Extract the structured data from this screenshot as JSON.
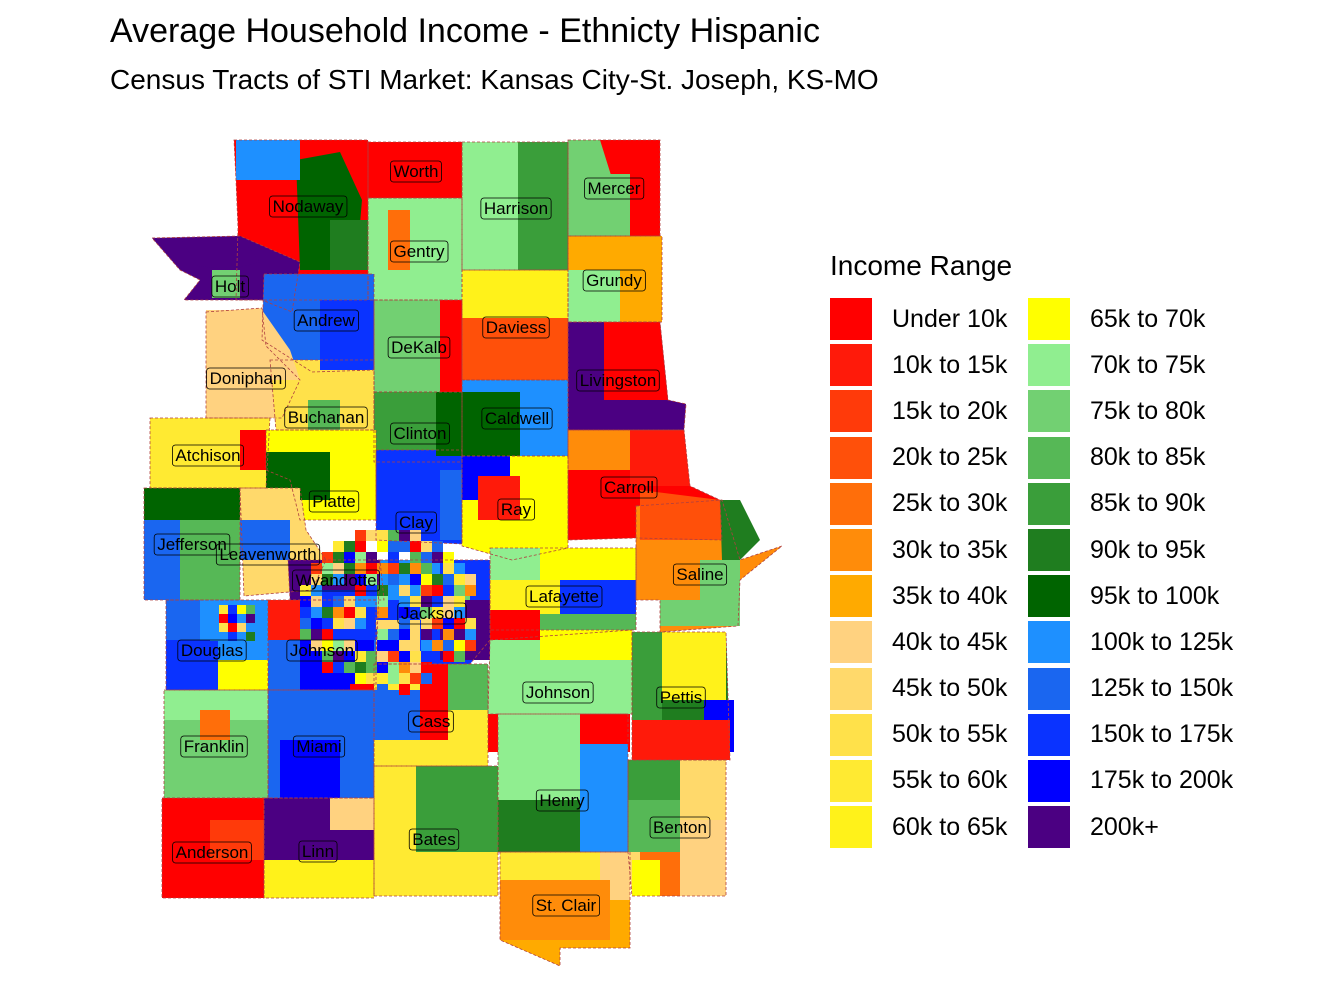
{
  "title": "Average Household Income - Ethnicty Hispanic",
  "subtitle": "Census Tracts of STI Market: Kansas City-St. Joseph, KS-MO",
  "legend": {
    "title": "Income Range",
    "items": [
      {
        "label": "Under 10k",
        "color": "#ff0000"
      },
      {
        "label": "10k to 15k",
        "color": "#ff1a0a"
      },
      {
        "label": "15k to 20k",
        "color": "#ff3a0a"
      },
      {
        "label": "20k to 25k",
        "color": "#ff500a"
      },
      {
        "label": "25k to 30k",
        "color": "#ff6e0a"
      },
      {
        "label": "30k to 35k",
        "color": "#ff8c0a"
      },
      {
        "label": "35k to 40k",
        "color": "#ffaa00"
      },
      {
        "label": "40k to 45k",
        "color": "#ffd280"
      },
      {
        "label": "45k to 50k",
        "color": "#ffd96b"
      },
      {
        "label": "50k to 55k",
        "color": "#ffe14a"
      },
      {
        "label": "55k to 60k",
        "color": "#ffea32"
      },
      {
        "label": "60k to 65k",
        "color": "#fff21a"
      },
      {
        "label": "65k to 70k",
        "color": "#ffff00"
      },
      {
        "label": "70k to 75k",
        "color": "#90ee90"
      },
      {
        "label": "75k to 80k",
        "color": "#72d072"
      },
      {
        "label": "80k to 85k",
        "color": "#56b856"
      },
      {
        "label": "85k to 90k",
        "color": "#3a9e3a"
      },
      {
        "label": "90k to 95k",
        "color": "#1f7d1f"
      },
      {
        "label": "95k to 100k",
        "color": "#006400"
      },
      {
        "label": "100k to 125k",
        "color": "#1e90ff"
      },
      {
        "label": "125k to 150k",
        "color": "#1a66f0"
      },
      {
        "label": "150k to 175k",
        "color": "#0a33ff"
      },
      {
        "label": "175k to 200k",
        "color": "#0000ff"
      },
      {
        "label": "200k+",
        "color": "#4b0082"
      }
    ]
  },
  "counties": [
    {
      "name": "Worth",
      "color": "#ff0000"
    },
    {
      "name": "Nodaway",
      "color": "#ff0000"
    },
    {
      "name": "Harrison",
      "color": "#90ee90"
    },
    {
      "name": "Mercer",
      "color": "#72d072"
    },
    {
      "name": "Gentry",
      "color": "#90ee90"
    },
    {
      "name": "Grundy",
      "color": "#ffaa00"
    },
    {
      "name": "Holt",
      "color": "#4b0082"
    },
    {
      "name": "Andrew",
      "color": "#1a66f0"
    },
    {
      "name": "Daviess",
      "color": "#ffea32"
    },
    {
      "name": "DeKalb",
      "color": "#72d072"
    },
    {
      "name": "Livingston",
      "color": "#4b0082"
    },
    {
      "name": "Doniphan",
      "color": "#ffd280"
    },
    {
      "name": "Buchanan",
      "color": "#ffe14a"
    },
    {
      "name": "Caldwell",
      "color": "#1e90ff"
    },
    {
      "name": "Clinton",
      "color": "#3a9e3a"
    },
    {
      "name": "Atchison",
      "color": "#ffea32"
    },
    {
      "name": "Carroll",
      "color": "#ff0000"
    },
    {
      "name": "Platte",
      "color": "#ffff00"
    },
    {
      "name": "Ray",
      "color": "#ffff00"
    },
    {
      "name": "Jefferson",
      "color": "#1a66f0"
    },
    {
      "name": "Clay",
      "color": "#0a33ff"
    },
    {
      "name": "Leavenworth",
      "color": "#ffd96b"
    },
    {
      "name": "Saline",
      "color": "#ff8c0a"
    },
    {
      "name": "Wyandotte",
      "color": "#4b0082"
    },
    {
      "name": "Lafayette",
      "color": "#56b856"
    },
    {
      "name": "Jackson",
      "color": "#0a33ff"
    },
    {
      "name": "Douglas",
      "color": "#1e90ff"
    },
    {
      "name": "Johnson",
      "color": "#1a66f0"
    },
    {
      "name": "Johnson",
      "color": "#90ee90"
    },
    {
      "name": "Pettis",
      "color": "#1f7d1f"
    },
    {
      "name": "Cass",
      "color": "#ffea32"
    },
    {
      "name": "Franklin",
      "color": "#72d072"
    },
    {
      "name": "Miami",
      "color": "#1a66f0"
    },
    {
      "name": "Henry",
      "color": "#90ee90"
    },
    {
      "name": "Benton",
      "color": "#ffd96b"
    },
    {
      "name": "Bates",
      "color": "#ffea32"
    },
    {
      "name": "Anderson",
      "color": "#ff0000"
    },
    {
      "name": "Linn",
      "color": "#4b0082"
    },
    {
      "name": "St. Clair",
      "color": "#ffaa00"
    }
  ]
}
